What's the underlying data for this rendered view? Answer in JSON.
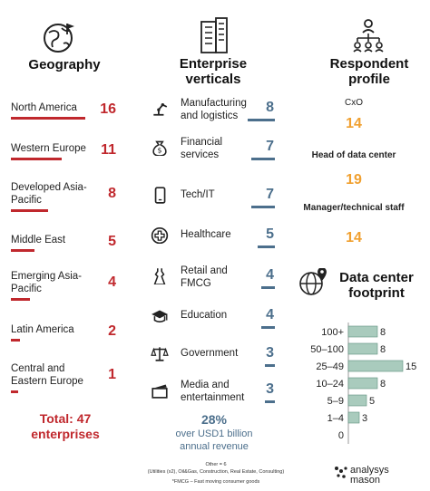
{
  "geography": {
    "title": "Geography",
    "items": [
      {
        "label": "North America",
        "value": 16
      },
      {
        "label": "Western Europe",
        "value": 11
      },
      {
        "label": "Developed Asia-Pacific",
        "value": 8
      },
      {
        "label": "Middle East",
        "value": 5
      },
      {
        "label": "Emerging Asia-Pacific",
        "value": 4
      },
      {
        "label": "Latin America",
        "value": 2
      },
      {
        "label": "Central and Eastern Europe",
        "value": 1
      }
    ],
    "total": "Total: 47 enterprises"
  },
  "verticals": {
    "title": "Enterprise verticals",
    "items": [
      {
        "label": "Manufacturing and logistics",
        "value": 8,
        "icon": "robot-arm-icon"
      },
      {
        "label": "Financial services",
        "value": 7,
        "icon": "money-bag-icon"
      },
      {
        "label": "Tech/IT",
        "value": 7,
        "icon": "smartphone-icon"
      },
      {
        "label": "Healthcare",
        "value": 5,
        "icon": "medical-cross-icon"
      },
      {
        "label": "Retail and FMCG",
        "value": 4,
        "icon": "dress-icon"
      },
      {
        "label": "Education",
        "value": 4,
        "icon": "graduation-cap-icon"
      },
      {
        "label": "Government",
        "value": 3,
        "icon": "scales-icon"
      },
      {
        "label": "Media and entertainment",
        "value": 3,
        "icon": "clapperboard-icon"
      }
    ],
    "revenue_pct": "28%",
    "revenue_text": "over USD1 billion annual revenue"
  },
  "respondent": {
    "title": "Respondent profile",
    "items": [
      {
        "label": "CxO",
        "value": 14
      },
      {
        "label": "Head of data center",
        "value": 19
      },
      {
        "label": "Manager/technical staff",
        "value": 14
      }
    ]
  },
  "footprint": {
    "title": "Data center footprint"
  },
  "footnotes": {
    "other": "Other = 6",
    "other_detail": "(Utilities (x2), Oil&Gas, Construction, Real Estate, Consulting)",
    "fmcg": "*FMCG – Fast moving consumer goods"
  },
  "logo": {
    "text": "analysys mason"
  },
  "colors": {
    "geo": "#c0282d",
    "vertical": "#4c6f8c",
    "respondent": "#f0a030",
    "footprint_bar": "#a9cbbd"
  },
  "chart_data": {
    "type": "bar",
    "orientation": "horizontal",
    "title": "Data center footprint",
    "categories": [
      "100+",
      "50–100",
      "25–49",
      "10–24",
      "5–9",
      "1–4",
      "0"
    ],
    "values": [
      8,
      8,
      15,
      8,
      5,
      3,
      0
    ],
    "xlim": [
      0,
      15
    ],
    "grid": false,
    "legend": "none"
  }
}
